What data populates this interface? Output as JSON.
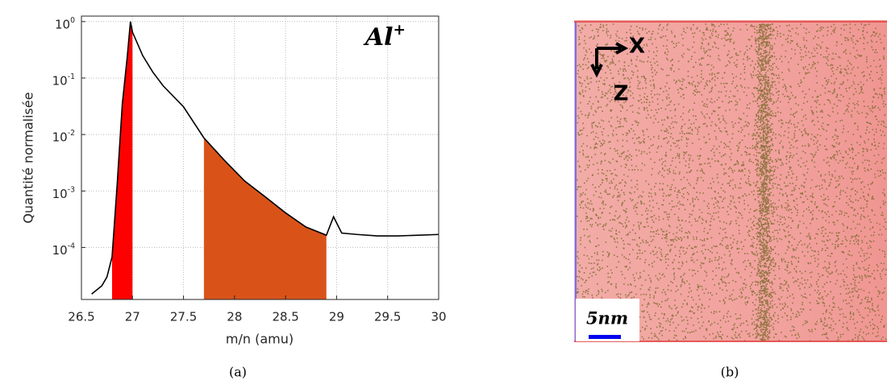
{
  "chart_data": {
    "type": "line",
    "annotation": "Al^+",
    "xlabel": "m/n (amu)",
    "ylabel": "Quantité normalisée",
    "caption": "(a)",
    "x": [
      26.6,
      26.7,
      26.75,
      26.8,
      26.85,
      26.9,
      26.95,
      26.98,
      27.0,
      27.1,
      27.2,
      27.3,
      27.5,
      27.7,
      27.9,
      28.1,
      28.3,
      28.5,
      28.7,
      28.9,
      28.97,
      29.05,
      29.2,
      29.4,
      29.6,
      29.8,
      30.0
    ],
    "series": [
      {
        "color": "#000000",
        "values": [
          1.5e-05,
          2.1e-05,
          3e-05,
          6.8e-05,
          0.0013,
          0.034,
          0.25,
          1.0,
          0.65,
          0.25,
          0.127,
          0.073,
          0.031,
          0.0087,
          0.0035,
          0.0015,
          0.00079,
          0.00041,
          0.00023,
          0.000165,
          0.00035,
          0.00018,
          0.00017,
          0.00016,
          0.00016,
          0.000165,
          0.00017
        ]
      }
    ],
    "shaded_regions": [
      {
        "x": [
          26.8,
          27.0
        ],
        "color": "#ff0000"
      },
      {
        "x": [
          27.7,
          28.9
        ],
        "color": "#d95319"
      }
    ],
    "xlim": [
      26.5,
      30
    ],
    "xticks": [
      26.5,
      27,
      27.5,
      28,
      28.5,
      29,
      29.5,
      30
    ],
    "ylim": [
      1.2e-05,
      1.25
    ],
    "yscale": "log",
    "yticks": [
      {
        "value": 0.0001,
        "label": "10^-4"
      },
      {
        "value": 0.001,
        "label": "10^-3"
      },
      {
        "value": 0.01,
        "label": "10^-2"
      },
      {
        "value": 0.1,
        "label": "10^-1"
      },
      {
        "value": 1,
        "label": "10^0"
      }
    ],
    "grid": true
  },
  "panel_b": {
    "axis_x": "X",
    "axis_z": "Z",
    "scale_bar": "5nm",
    "caption": "(b)"
  }
}
